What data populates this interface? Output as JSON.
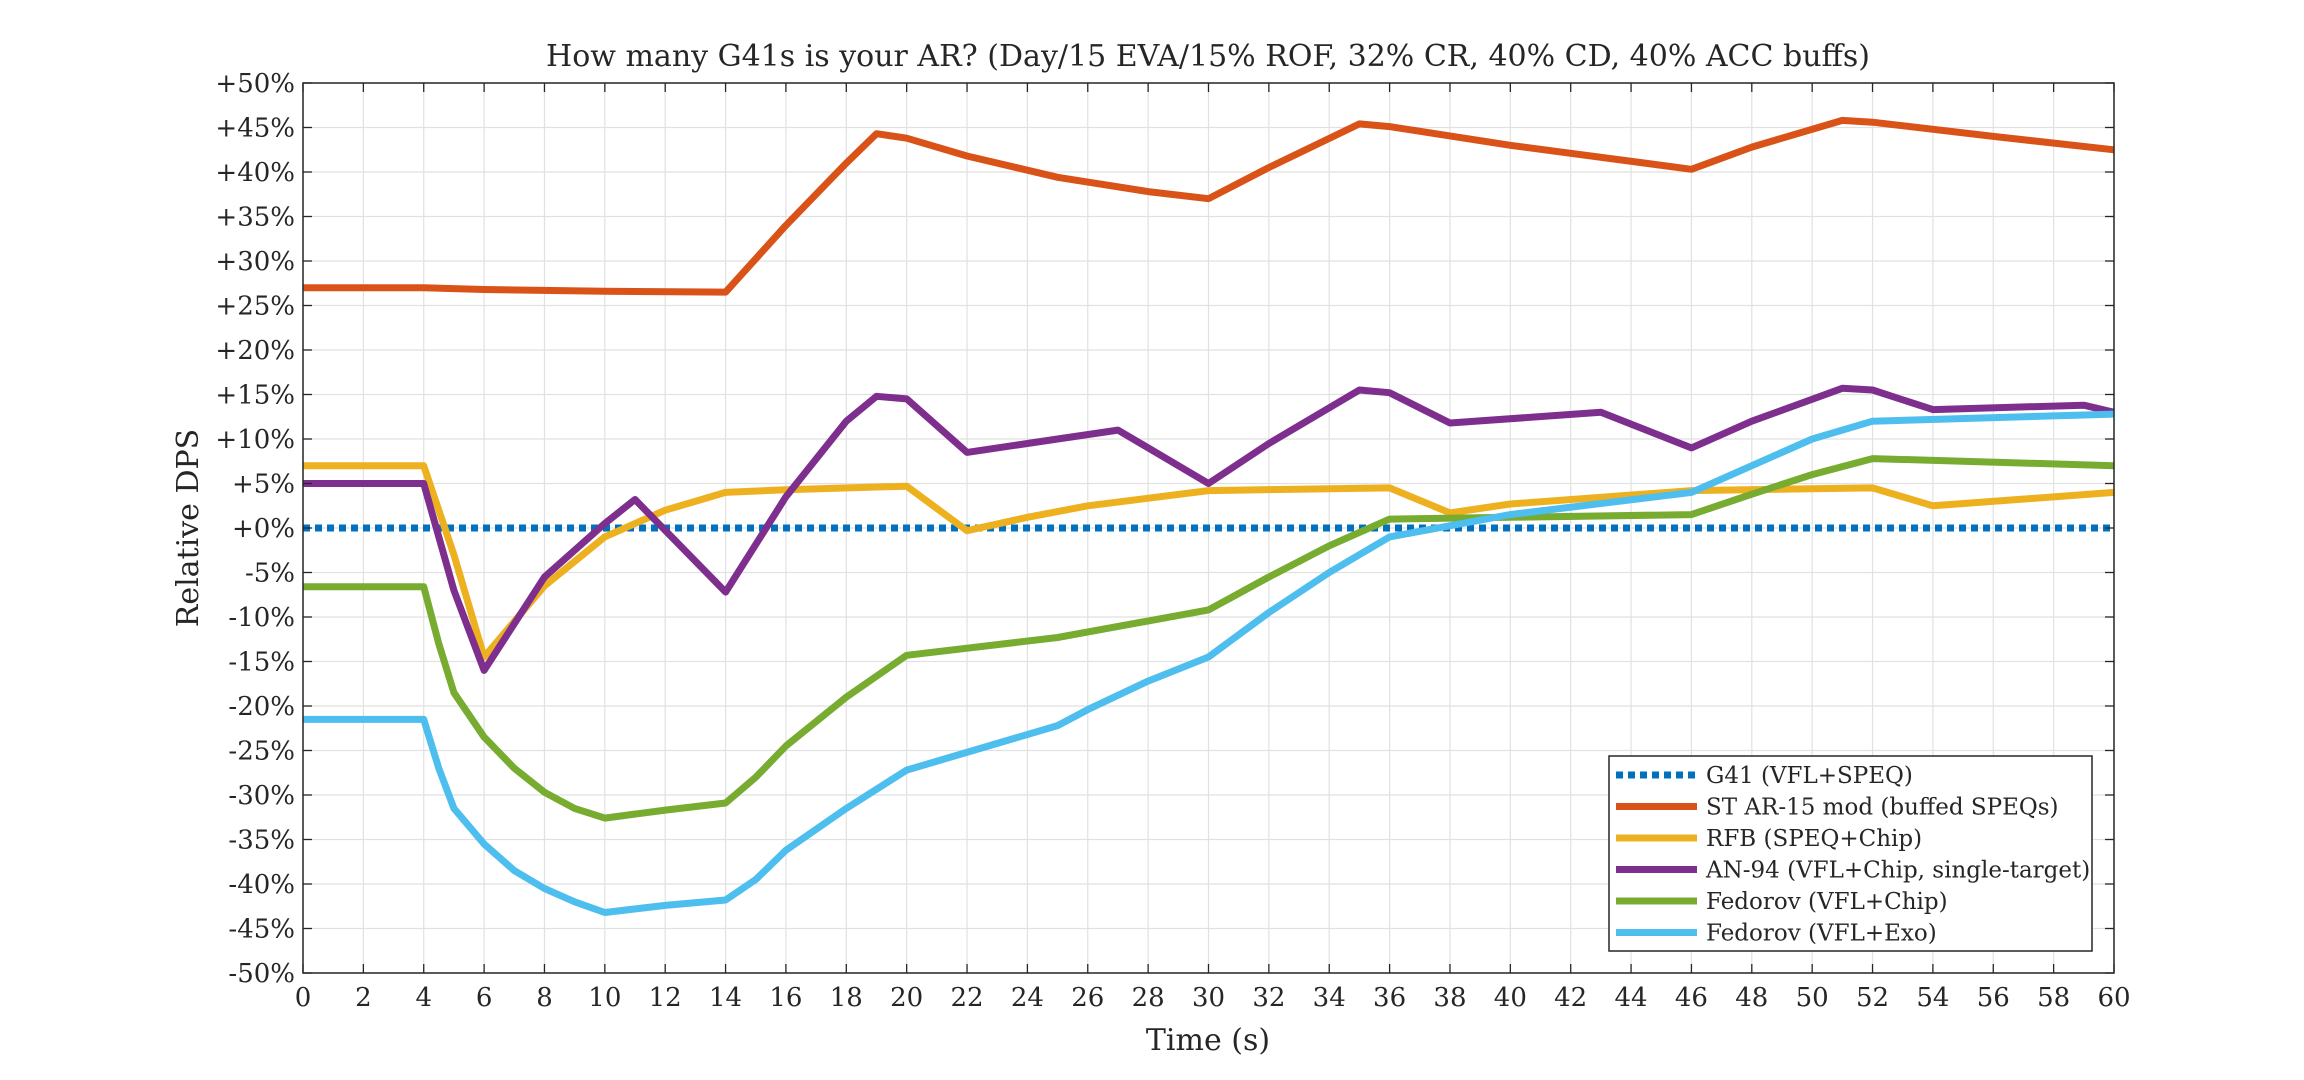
{
  "chart_data": {
    "type": "line",
    "title": "How many G41s is your AR? (Day/15 EVA/15% ROF, 32% CR, 40% CD, 40% ACC buffs)",
    "xlabel": "Time (s)",
    "ylabel": "Relative DPS",
    "xlim": [
      0,
      60
    ],
    "ylim": [
      -50,
      50
    ],
    "x_ticks": [
      0,
      2,
      4,
      6,
      8,
      10,
      12,
      14,
      16,
      18,
      20,
      22,
      24,
      26,
      28,
      30,
      32,
      34,
      36,
      38,
      40,
      42,
      44,
      46,
      48,
      50,
      52,
      54,
      56,
      58,
      60
    ],
    "y_ticks": [
      -50,
      -45,
      -40,
      -35,
      -30,
      -25,
      -20,
      -15,
      -10,
      -5,
      0,
      5,
      10,
      15,
      20,
      25,
      30,
      35,
      40,
      45,
      50
    ],
    "y_tick_labels": [
      "-50%",
      "-45%",
      "-40%",
      "-35%",
      "-30%",
      "-25%",
      "-20%",
      "-15%",
      "-10%",
      "-5%",
      "+0%",
      "+5%",
      "+10%",
      "+15%",
      "+20%",
      "+25%",
      "+30%",
      "+35%",
      "+40%",
      "+45%",
      "+50%"
    ],
    "grid": true,
    "legend_position": "bottom-right",
    "series": [
      {
        "name": "G41 (VFL+SPEQ)",
        "color": "#0072BD",
        "style": "dotted",
        "x": [
          0,
          60
        ],
        "y": [
          0,
          0
        ]
      },
      {
        "name": "ST AR-15 mod (buffed SPEQs)",
        "color": "#D95319",
        "style": "solid",
        "x": [
          0,
          4,
          6,
          10,
          14,
          16,
          18,
          19,
          20,
          22,
          25,
          28,
          30,
          32,
          35,
          36,
          40,
          46,
          48,
          51,
          52,
          56,
          60
        ],
        "y": [
          27,
          27,
          26.8,
          26.6,
          26.5,
          34,
          41,
          44.3,
          43.8,
          41.8,
          39.4,
          37.8,
          37,
          40.5,
          45.4,
          45.1,
          43,
          40.3,
          42.8,
          45.8,
          45.6,
          44,
          42.5
        ]
      },
      {
        "name": "RFB (SPEQ+Chip)",
        "color": "#EDB120",
        "style": "solid",
        "x": [
          0,
          4,
          5,
          6,
          8,
          10,
          12,
          14,
          16,
          20,
          22,
          24,
          26,
          30,
          36,
          38,
          40,
          46,
          52,
          54,
          60
        ],
        "y": [
          7,
          7,
          -3,
          -14.5,
          -6.5,
          -1,
          2,
          4,
          4.3,
          4.7,
          -0.3,
          1.2,
          2.5,
          4.2,
          4.5,
          1.7,
          2.7,
          4.2,
          4.5,
          2.5,
          4
        ]
      },
      {
        "name": "AN-94 (VFL+Chip, single-target)",
        "color": "#7E2F8E",
        "style": "solid",
        "x": [
          0,
          4,
          5,
          6,
          8,
          10,
          11,
          14,
          16,
          18,
          19,
          20,
          22,
          25,
          27,
          30,
          32,
          35,
          36,
          38,
          43,
          46,
          48,
          51,
          52,
          54,
          59,
          60
        ],
        "y": [
          5,
          5,
          -7,
          -16,
          -5.5,
          0.5,
          3.2,
          -7.2,
          3.5,
          12,
          14.8,
          14.5,
          8.5,
          10,
          11,
          5,
          9.5,
          15.5,
          15.2,
          11.8,
          13,
          9,
          12,
          15.7,
          15.5,
          13.3,
          13.8,
          13
        ]
      },
      {
        "name": "Fedorov (VFL+Chip)",
        "color": "#77AC30",
        "style": "solid",
        "x": [
          0,
          4,
          4.5,
          5,
          6,
          7,
          8,
          9,
          10,
          12,
          14,
          15,
          16,
          18,
          20,
          25,
          30,
          32,
          34,
          36,
          40,
          46,
          48,
          50,
          52,
          60
        ],
        "y": [
          -6.6,
          -6.6,
          -13,
          -18.5,
          -23.5,
          -27,
          -29.7,
          -31.5,
          -32.6,
          -31.7,
          -30.9,
          -28,
          -24.5,
          -19,
          -14.3,
          -12.3,
          -9.2,
          -5.5,
          -2,
          1,
          1.2,
          1.5,
          3.8,
          6,
          7.8,
          7
        ]
      },
      {
        "name": "Fedorov (VFL+Exo)",
        "color": "#4DBEEE",
        "style": "solid",
        "x": [
          0,
          4,
          4.5,
          5,
          6,
          7,
          8,
          9,
          10,
          12,
          14,
          15,
          16,
          18,
          20,
          25,
          26,
          28,
          30,
          32,
          34,
          36,
          40,
          46,
          48,
          50,
          52,
          60
        ],
        "y": [
          -21.5,
          -21.5,
          -27,
          -31.5,
          -35.5,
          -38.5,
          -40.5,
          -42,
          -43.2,
          -42.4,
          -41.8,
          -39.5,
          -36.2,
          -31.5,
          -27.2,
          -22.2,
          -20.4,
          -17.2,
          -14.5,
          -9.5,
          -5,
          -1,
          1.5,
          4,
          7,
          10,
          12,
          12.8
        ]
      }
    ]
  }
}
